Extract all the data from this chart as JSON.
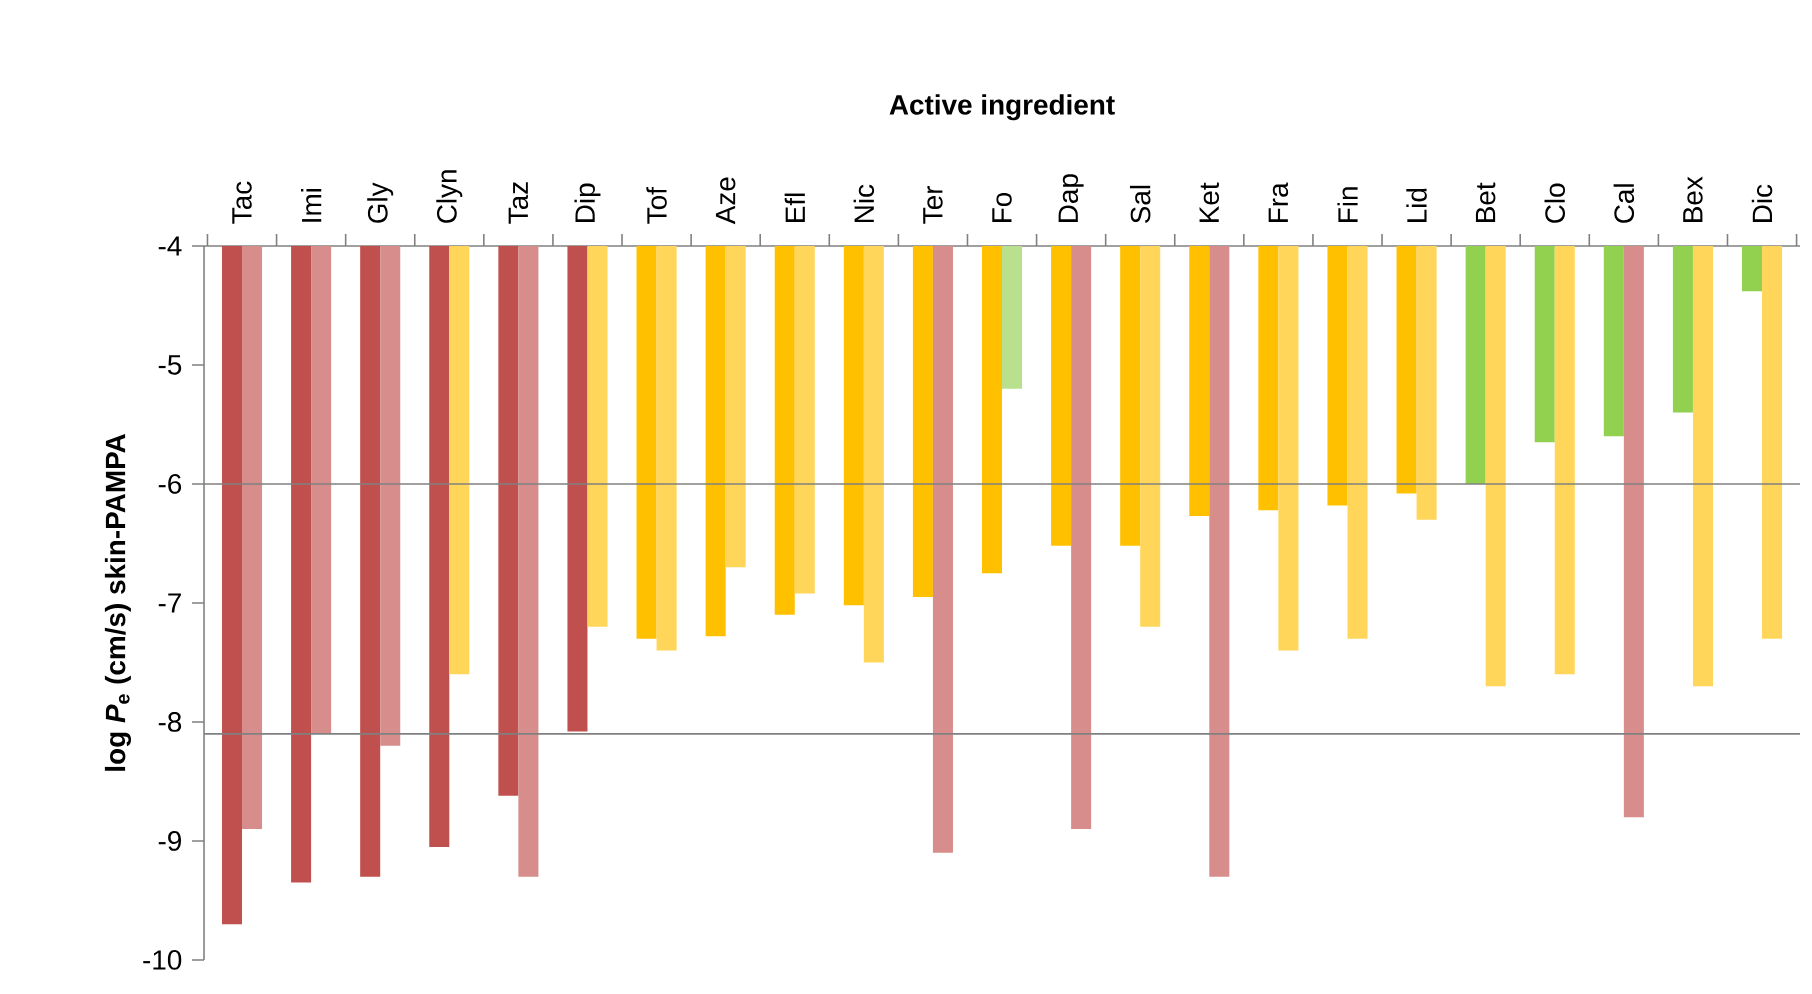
{
  "chart_data": {
    "type": "bar",
    "title": "Active ingredient",
    "ylabel": "log *P*$_{e}$ (cm/s) skin-PAMPA",
    "categories": [
      "Tac",
      "Imi",
      "Gly",
      "Clyn",
      "Taz",
      "Dip",
      "Tof",
      "Aze",
      "Efl",
      "Nic",
      "Ter",
      "Fo",
      "Dap",
      "Sal",
      "Ket",
      "Fra",
      "Fin",
      "Lid",
      "Bet",
      "Clo",
      "Cal",
      "Bex",
      "Dic"
    ],
    "series": [
      {
        "values": [
          -9.7,
          -9.35,
          -9.3,
          -9.05,
          -8.62,
          -8.08,
          -7.3,
          -7.28,
          -7.1,
          -7.02,
          -6.95,
          -6.75,
          -6.52,
          -6.52,
          -6.27,
          -6.22,
          -6.18,
          -6.08,
          -6.0,
          -5.65,
          -5.6,
          -5.4,
          -4.38
        ],
        "colors": [
          "#c0504d",
          "#c0504d",
          "#c0504d",
          "#c0504d",
          "#c0504d",
          "#c0504d",
          "#ffc000",
          "#ffc000",
          "#ffc000",
          "#ffc000",
          "#ffc000",
          "#ffc000",
          "#ffc000",
          "#ffc000",
          "#ffc000",
          "#ffc000",
          "#ffc000",
          "#ffc000",
          "#92d050",
          "#92d050",
          "#92d050",
          "#92d050",
          "#92d050"
        ]
      },
      {
        "values": [
          -8.9,
          -8.1,
          -8.2,
          -7.6,
          -9.3,
          -7.2,
          -7.4,
          -6.7,
          -6.92,
          -7.5,
          -9.1,
          -5.2,
          -8.9,
          -7.2,
          -9.3,
          -7.4,
          -7.3,
          -6.3,
          -7.7,
          -7.6,
          -8.8,
          -7.7,
          -7.3
        ],
        "colors": [
          "#d68d8b",
          "#d68d8b",
          "#d68d8b",
          "#ffd659",
          "#d68d8b",
          "#ffd659",
          "#ffd659",
          "#ffd659",
          "#ffd659",
          "#ffd659",
          "#d68d8b",
          "#b8e08d",
          "#d68d8b",
          "#ffd659",
          "#d68d8b",
          "#ffd659",
          "#ffd659",
          "#ffd659",
          "#ffd659",
          "#ffd659",
          "#d68d8b",
          "#ffd659",
          "#ffd659"
        ]
      }
    ],
    "ylim": [
      -10,
      -4
    ],
    "yticks": [
      -10,
      -9,
      -8,
      -7,
      -6,
      -5,
      -4
    ],
    "ref_lines": [
      {
        "axis": "y",
        "value": -6,
        "color": "#808080"
      },
      {
        "axis": "y",
        "value": -8.1,
        "color": "#808080"
      }
    ],
    "grid": false
  }
}
